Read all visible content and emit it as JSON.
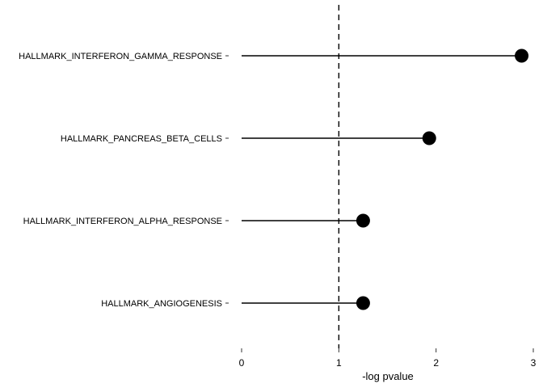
{
  "chart_data": {
    "type": "lollipop",
    "title": "",
    "xlabel": "-log pvalue",
    "ylabel": "",
    "xlim": [
      0,
      3
    ],
    "xticks": [
      "0",
      "1",
      "2",
      "3"
    ],
    "reference_line": {
      "x": 1,
      "style": "dashed"
    },
    "grid": false,
    "legend": "none",
    "categories": [
      "HALLMARK_INTERFERON_GAMMA_RESPONSE",
      "HALLMARK_PANCREAS_BETA_CELLS",
      "HALLMARK_INTERFERON_ALPHA_RESPONSE",
      "HALLMARK_ANGIOGENESIS"
    ],
    "values": [
      2.88,
      1.93,
      1.25,
      1.25
    ],
    "colors": {
      "mark": "#000000",
      "background": "#ffffff"
    }
  }
}
